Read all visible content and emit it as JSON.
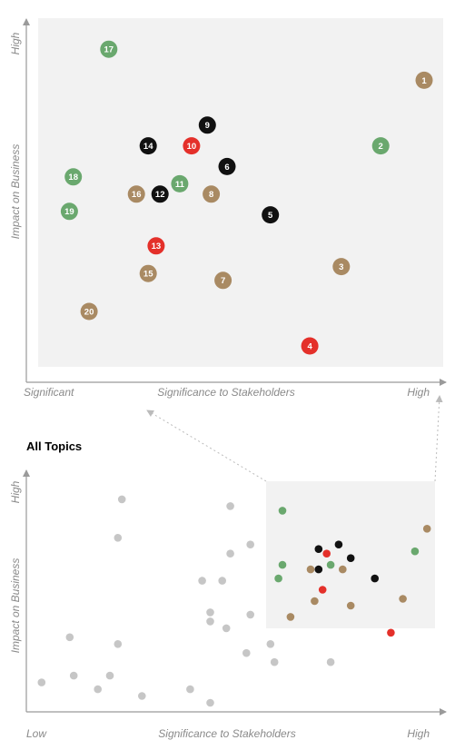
{
  "colors": {
    "green": "#6aa86e",
    "brown": "#a98a63",
    "black": "#111111",
    "red": "#e4302a",
    "gray": "#c6c6c6",
    "panel": "#f2f2f2",
    "axis": "#9a9a9a"
  },
  "chart_data": [
    {
      "type": "scatter",
      "title": "",
      "xlabel": "Significance to Stakeholders",
      "ylabel": "Impact on Business",
      "x_tick_labels": [
        "Significant",
        "High"
      ],
      "y_tick_labels": [
        "High"
      ],
      "xlim": [
        0,
        100
      ],
      "ylim": [
        0,
        100
      ],
      "grid": false,
      "points": [
        {
          "label": "1",
          "x": 97,
          "y": 82,
          "color": "brown"
        },
        {
          "label": "2",
          "x": 86,
          "y": 63,
          "color": "green"
        },
        {
          "label": "3",
          "x": 76,
          "y": 28,
          "color": "brown"
        },
        {
          "label": "4",
          "x": 68,
          "y": 5,
          "color": "red"
        },
        {
          "label": "5",
          "x": 58,
          "y": 43,
          "color": "black"
        },
        {
          "label": "6",
          "x": 47,
          "y": 57,
          "color": "black"
        },
        {
          "label": "7",
          "x": 46,
          "y": 24,
          "color": "brown"
        },
        {
          "label": "8",
          "x": 43,
          "y": 49,
          "color": "brown"
        },
        {
          "label": "9",
          "x": 42,
          "y": 69,
          "color": "black"
        },
        {
          "label": "10",
          "x": 38,
          "y": 63,
          "color": "red"
        },
        {
          "label": "11",
          "x": 35,
          "y": 52,
          "color": "green"
        },
        {
          "label": "12",
          "x": 30,
          "y": 49,
          "color": "black"
        },
        {
          "label": "13",
          "x": 29,
          "y": 34,
          "color": "red"
        },
        {
          "label": "14",
          "x": 27,
          "y": 63,
          "color": "black"
        },
        {
          "label": "15",
          "x": 27,
          "y": 26,
          "color": "brown"
        },
        {
          "label": "16",
          "x": 24,
          "y": 49,
          "color": "brown"
        },
        {
          "label": "17",
          "x": 17,
          "y": 91,
          "color": "green"
        },
        {
          "label": "18",
          "x": 8,
          "y": 54,
          "color": "green"
        },
        {
          "label": "19",
          "x": 7,
          "y": 44,
          "color": "green"
        },
        {
          "label": "20",
          "x": 12,
          "y": 15,
          "color": "brown"
        }
      ]
    },
    {
      "type": "scatter",
      "title": "All Topics",
      "xlabel": "Significance to Stakeholders",
      "ylabel": "Impact on Business",
      "x_tick_labels": [
        "Low",
        "High"
      ],
      "y_tick_labels": [
        "High"
      ],
      "xlim": [
        0,
        100
      ],
      "ylim": [
        0,
        100
      ],
      "grid": false,
      "highlight_region": {
        "x": [
          60,
          100
        ],
        "y": [
          33,
          100
        ]
      },
      "points": [
        {
          "x": 62,
          "y": 87,
          "color": "green"
        },
        {
          "x": 98,
          "y": 79,
          "color": "brown"
        },
        {
          "x": 95,
          "y": 69,
          "color": "green"
        },
        {
          "x": 71,
          "y": 70,
          "color": "black"
        },
        {
          "x": 73,
          "y": 68,
          "color": "red"
        },
        {
          "x": 76,
          "y": 72,
          "color": "black"
        },
        {
          "x": 79,
          "y": 66,
          "color": "black"
        },
        {
          "x": 69,
          "y": 61,
          "color": "brown"
        },
        {
          "x": 71,
          "y": 61,
          "color": "black"
        },
        {
          "x": 74,
          "y": 63,
          "color": "green"
        },
        {
          "x": 77,
          "y": 61,
          "color": "brown"
        },
        {
          "x": 62,
          "y": 63,
          "color": "green"
        },
        {
          "x": 61,
          "y": 57,
          "color": "green"
        },
        {
          "x": 85,
          "y": 57,
          "color": "black"
        },
        {
          "x": 72,
          "y": 52,
          "color": "red"
        },
        {
          "x": 70,
          "y": 47,
          "color": "brown"
        },
        {
          "x": 79,
          "y": 45,
          "color": "brown"
        },
        {
          "x": 92,
          "y": 48,
          "color": "brown"
        },
        {
          "x": 64,
          "y": 40,
          "color": "brown"
        },
        {
          "x": 89,
          "y": 33,
          "color": "red"
        },
        {
          "x": 22,
          "y": 92,
          "color": "gray"
        },
        {
          "x": 49,
          "y": 89,
          "color": "gray"
        },
        {
          "x": 21,
          "y": 75,
          "color": "gray"
        },
        {
          "x": 54,
          "y": 72,
          "color": "gray"
        },
        {
          "x": 49,
          "y": 68,
          "color": "gray"
        },
        {
          "x": 42,
          "y": 56,
          "color": "gray"
        },
        {
          "x": 47,
          "y": 56,
          "color": "gray"
        },
        {
          "x": 44,
          "y": 42,
          "color": "gray"
        },
        {
          "x": 44,
          "y": 38,
          "color": "gray"
        },
        {
          "x": 54,
          "y": 41,
          "color": "gray"
        },
        {
          "x": 48,
          "y": 35,
          "color": "gray"
        },
        {
          "x": 9,
          "y": 31,
          "color": "gray"
        },
        {
          "x": 21,
          "y": 28,
          "color": "gray"
        },
        {
          "x": 59,
          "y": 28,
          "color": "gray"
        },
        {
          "x": 53,
          "y": 24,
          "color": "gray"
        },
        {
          "x": 60,
          "y": 20,
          "color": "gray"
        },
        {
          "x": 74,
          "y": 20,
          "color": "gray"
        },
        {
          "x": 10,
          "y": 14,
          "color": "gray"
        },
        {
          "x": 2,
          "y": 11,
          "color": "gray"
        },
        {
          "x": 19,
          "y": 14,
          "color": "gray"
        },
        {
          "x": 16,
          "y": 8,
          "color": "gray"
        },
        {
          "x": 27,
          "y": 5,
          "color": "gray"
        },
        {
          "x": 39,
          "y": 8,
          "color": "gray"
        },
        {
          "x": 44,
          "y": 2,
          "color": "gray"
        }
      ]
    }
  ]
}
